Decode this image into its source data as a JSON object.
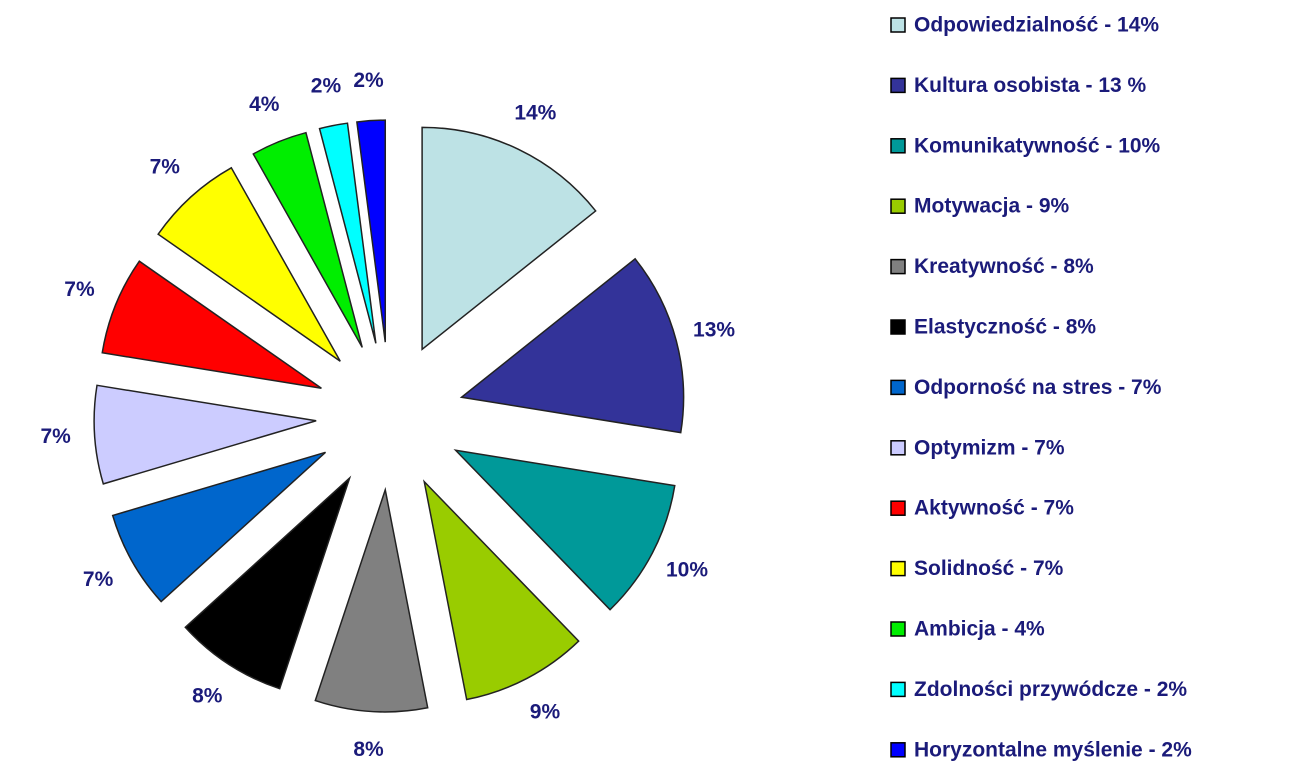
{
  "chart_data": {
    "type": "pie",
    "categories": [
      "Odpowiedzialność - 14%",
      "Kultura osobista - 13 %",
      "Komunikatywność - 10%",
      "Motywacja - 9%",
      "Kreatywność - 8%",
      "Elastyczność - 8%",
      "Odporność na stres - 7%",
      "Optymizm - 7%",
      "Aktywność - 7%",
      "Solidność - 7%",
      "Ambicja - 4%",
      "Zdolności przywódcze - 2%",
      "Horyzontalne myślenie - 2%"
    ],
    "values": [
      14,
      13,
      10,
      9,
      8,
      8,
      7,
      7,
      7,
      7,
      4,
      2,
      2
    ],
    "value_labels": [
      "14%",
      "13%",
      "10%",
      "9%",
      "8%",
      "8%",
      "7%",
      "7%",
      "7%",
      "7%",
      "4%",
      "2%",
      "2%"
    ],
    "colors": [
      "#bde2e5",
      "#333399",
      "#009999",
      "#99cc00",
      "#808080",
      "#000000",
      "#0066cc",
      "#ccccff",
      "#ff0000",
      "#ffff00",
      "#00ee00",
      "#00ffff",
      "#0000ff"
    ],
    "legend": "right"
  }
}
